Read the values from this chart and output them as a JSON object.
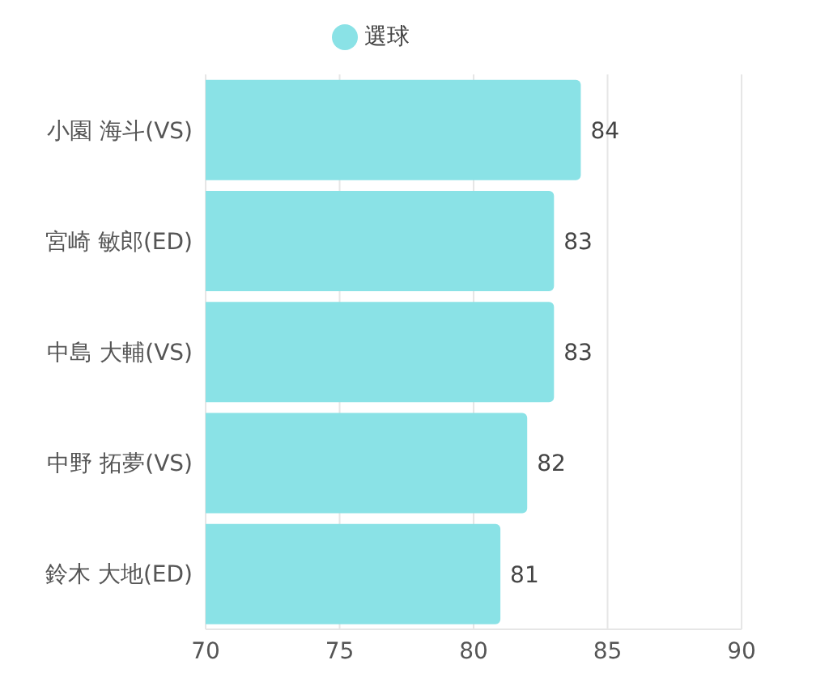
{
  "chart_data": {
    "type": "bar",
    "orientation": "horizontal",
    "categories": [
      "小園 海斗(VS)",
      "宮崎 敏郎(ED)",
      "中島 大輔(VS)",
      "中野 拓夢(VS)",
      "鈴木 大地(ED)"
    ],
    "series": [
      {
        "name": "選球",
        "color": "#8ae2e6",
        "values": [
          84,
          83,
          83,
          82,
          81
        ]
      }
    ],
    "xlim": [
      70,
      90
    ],
    "xticks": [
      70,
      75,
      80,
      85,
      90
    ],
    "grid": "x",
    "legend": "top",
    "data_labels": true
  }
}
